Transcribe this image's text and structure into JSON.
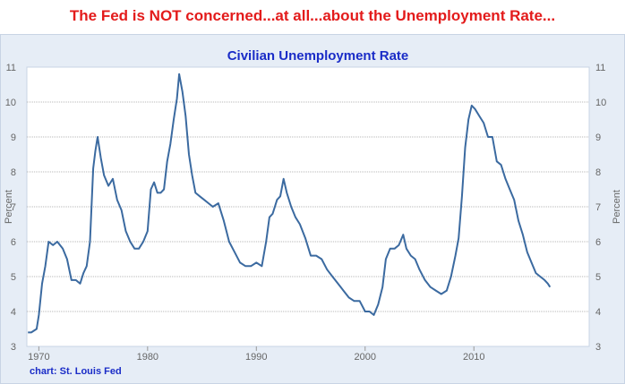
{
  "headline": "The Fed is NOT concerned...at all...about the Unemployment Rate...",
  "source_note": "chart: St. Louis Fed",
  "colors": {
    "headline": "#e31b1b",
    "title": "#1a2cc7",
    "line": "#3b6aa0",
    "plot_bg": "#ffffff",
    "frame_bg": "#e6edf6",
    "grid": "#a0a0a0",
    "tick_text": "#666666"
  },
  "chart_data": {
    "type": "line",
    "title": "Civilian Unemployment Rate",
    "xlabel": "",
    "ylabel": "Percent",
    "ylabel_right": "Percent",
    "xlim": [
      1968.9,
      2020.6
    ],
    "ylim": [
      3,
      11
    ],
    "x_ticks": [
      1970,
      1980,
      1990,
      2000,
      2010
    ],
    "y_ticks": [
      3,
      4,
      5,
      6,
      7,
      8,
      9,
      10,
      11
    ],
    "grid": true,
    "legend": "none",
    "series": [
      {
        "x": [
          1969.0,
          1969.3,
          1969.8,
          1970.0,
          1970.3,
          1970.6,
          1970.9,
          1971.3,
          1971.7,
          1972.2,
          1972.6,
          1973.0,
          1973.4,
          1973.8,
          1974.1,
          1974.4,
          1974.7,
          1975.0,
          1975.2,
          1975.4,
          1975.7,
          1976.0,
          1976.4,
          1976.8,
          1977.2,
          1977.6,
          1978.0,
          1978.4,
          1978.8,
          1979.2,
          1979.6,
          1980.0,
          1980.3,
          1980.6,
          1980.9,
          1981.2,
          1981.5,
          1981.8,
          1982.1,
          1982.4,
          1982.7,
          1982.9,
          1983.2,
          1983.5,
          1983.8,
          1984.1,
          1984.4,
          1984.8,
          1985.2,
          1985.6,
          1986.0,
          1986.5,
          1987.0,
          1987.5,
          1988.0,
          1988.5,
          1989.0,
          1989.5,
          1990.0,
          1990.5,
          1990.9,
          1991.2,
          1991.5,
          1991.9,
          1992.2,
          1992.5,
          1992.8,
          1993.2,
          1993.6,
          1994.0,
          1994.5,
          1995.0,
          1995.5,
          1996.0,
          1996.5,
          1997.0,
          1997.5,
          1998.0,
          1998.5,
          1999.0,
          1999.5,
          2000.0,
          2000.4,
          2000.8,
          2001.2,
          2001.6,
          2001.9,
          2002.3,
          2002.7,
          2003.1,
          2003.5,
          2003.8,
          2004.2,
          2004.6,
          2005.0,
          2005.5,
          2006.0,
          2006.5,
          2007.0,
          2007.5,
          2007.9,
          2008.3,
          2008.6,
          2008.9,
          2009.2,
          2009.5,
          2009.8,
          2010.1,
          2010.5,
          2010.9,
          2011.3,
          2011.7,
          2012.1,
          2012.5,
          2012.9,
          2013.3,
          2013.7,
          2014.1,
          2014.5,
          2014.9,
          2015.3,
          2015.7,
          2016.1,
          2016.5,
          2016.8,
          2017.0
        ],
        "values": [
          3.4,
          3.4,
          3.5,
          3.9,
          4.8,
          5.3,
          6.0,
          5.9,
          6.0,
          5.8,
          5.5,
          4.9,
          4.9,
          4.8,
          5.1,
          5.3,
          6.0,
          8.1,
          8.6,
          9.0,
          8.4,
          7.9,
          7.6,
          7.8,
          7.2,
          6.9,
          6.3,
          6.0,
          5.8,
          5.8,
          6.0,
          6.3,
          7.5,
          7.7,
          7.4,
          7.4,
          7.5,
          8.3,
          8.8,
          9.5,
          10.1,
          10.8,
          10.3,
          9.6,
          8.5,
          7.9,
          7.4,
          7.3,
          7.2,
          7.1,
          7.0,
          7.1,
          6.6,
          6.0,
          5.7,
          5.4,
          5.3,
          5.3,
          5.4,
          5.3,
          6.0,
          6.7,
          6.8,
          7.2,
          7.3,
          7.8,
          7.4,
          7.0,
          6.7,
          6.5,
          6.1,
          5.6,
          5.6,
          5.5,
          5.2,
          5.0,
          4.8,
          4.6,
          4.4,
          4.3,
          4.3,
          4.0,
          4.0,
          3.9,
          4.2,
          4.7,
          5.5,
          5.8,
          5.8,
          5.9,
          6.2,
          5.8,
          5.6,
          5.5,
          5.2,
          4.9,
          4.7,
          4.6,
          4.5,
          4.6,
          5.0,
          5.6,
          6.1,
          7.3,
          8.7,
          9.5,
          9.9,
          9.8,
          9.6,
          9.4,
          9.0,
          9.0,
          8.3,
          8.2,
          7.8,
          7.5,
          7.2,
          6.6,
          6.2,
          5.7,
          5.4,
          5.1,
          5.0,
          4.9,
          4.8,
          4.7
        ]
      }
    ]
  }
}
